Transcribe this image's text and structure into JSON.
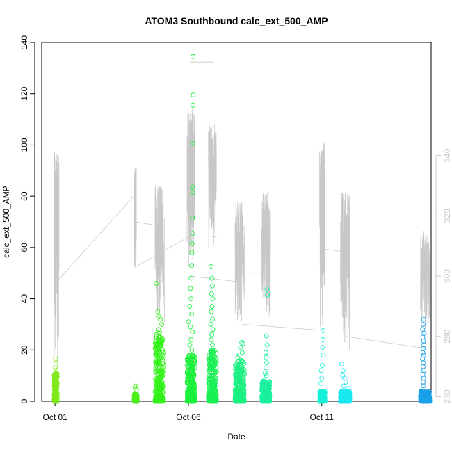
{
  "chart_data": {
    "type": "scatter",
    "title": "ATOM3 Southbound calc_ext_500_AMP",
    "xlabel": "Date",
    "ylabel": "calc_ext_500_AMP",
    "x_unit": "day of October (1 = Oct 01)",
    "xlim": [
      0.5,
      15.1
    ],
    "ylim": [
      0,
      140
    ],
    "y_ticks": [
      0,
      20,
      40,
      60,
      80,
      100,
      120,
      140
    ],
    "x_ticks": [
      {
        "value": 1,
        "label": "Oct 01"
      },
      {
        "value": 6,
        "label": "Oct 06"
      },
      {
        "value": 11,
        "label": "Oct 11"
      }
    ],
    "right_axis": {
      "ylim": [
        258.5,
        377.5
      ],
      "ticks": [
        260,
        280,
        300,
        320,
        340
      ],
      "color": "#c8c8c8"
    },
    "grid": false,
    "legend": "none",
    "series": [
      {
        "kind": "points",
        "marker": "open-circle",
        "clusters": [
          {
            "color": "#7fe81a",
            "x_range": [
              0.97,
              1.08
            ],
            "dense_range": [
              0,
              11
            ],
            "outliers": [
              [
                1.02,
                16.5
              ],
              [
                1.03,
                14.5
              ],
              [
                1.01,
                13
              ],
              [
                1.04,
                12
              ]
            ]
          },
          {
            "color": "#4cf01a",
            "x_range": [
              3.97,
              4.08
            ],
            "dense_range": [
              0,
              3
            ],
            "outliers": [
              [
                4.0,
                5.5
              ],
              [
                4.05,
                4.5
              ],
              [
                4.03,
                6
              ]
            ]
          },
          {
            "color": "#33f31a",
            "x_range": [
              4.75,
              5.05
            ],
            "dense_range": [
              0,
              26
            ],
            "outliers": [
              [
                4.8,
                46
              ],
              [
                4.85,
                35
              ],
              [
                4.9,
                33
              ],
              [
                4.95,
                32
              ],
              [
                5.0,
                30
              ],
              [
                4.88,
                28
              ],
              [
                4.92,
                27
              ]
            ]
          },
          {
            "color": "#1af03a",
            "x_range": [
              5.95,
              6.25
            ],
            "dense_range": [
              0,
              18
            ],
            "outliers": [
              [
                6.17,
                134.5
              ],
              [
                6.18,
                119.5
              ],
              [
                6.17,
                115.5
              ],
              [
                6.16,
                100.5
              ],
              [
                6.15,
                83.5
              ],
              [
                6.16,
                81.5
              ],
              [
                6.15,
                71.5
              ],
              [
                6.16,
                65.5
              ],
              [
                6.14,
                61.5
              ],
              [
                6.13,
                58
              ],
              [
                6.12,
                53
              ],
              [
                6.1,
                48
              ],
              [
                6.08,
                44
              ],
              [
                6.1,
                40
              ],
              [
                6.05,
                37
              ],
              [
                6.12,
                34
              ],
              [
                6.0,
                31
              ],
              [
                6.08,
                29
              ],
              [
                6.15,
                27
              ],
              [
                6.1,
                24
              ],
              [
                6.05,
                22
              ],
              [
                6.13,
                20
              ]
            ]
          },
          {
            "color": "#1af055",
            "x_range": [
              6.75,
              7.05
            ],
            "dense_range": [
              0,
              20
            ],
            "outliers": [
              [
                6.85,
                52.5
              ],
              [
                6.88,
                48
              ],
              [
                6.9,
                45
              ],
              [
                6.87,
                42
              ],
              [
                6.91,
                40
              ],
              [
                6.89,
                37
              ],
              [
                6.86,
                35
              ],
              [
                6.9,
                32
              ],
              [
                6.84,
                30
              ],
              [
                6.92,
                28
              ],
              [
                6.88,
                26
              ],
              [
                6.86,
                24
              ],
              [
                6.9,
                22
              ]
            ]
          },
          {
            "color": "#1af080",
            "x_range": [
              7.75,
              8.1
            ],
            "dense_range": [
              0,
              16
            ],
            "outliers": [
              [
                8.0,
                23
              ],
              [
                8.05,
                22.5
              ],
              [
                7.95,
                21
              ],
              [
                8.02,
                19
              ],
              [
                7.9,
                18
              ],
              [
                7.85,
                17
              ]
            ]
          },
          {
            "color": "#1af0a0",
            "x_range": [
              8.75,
              9.05
            ],
            "dense_range": [
              0,
              8
            ],
            "outliers": [
              [
                8.95,
                43.5
              ],
              [
                8.96,
                41.5
              ],
              [
                8.93,
                25.5
              ],
              [
                8.95,
                22
              ],
              [
                8.9,
                19
              ],
              [
                8.92,
                17
              ],
              [
                8.94,
                15
              ],
              [
                8.91,
                13
              ],
              [
                8.88,
                11
              ],
              [
                8.93,
                10
              ]
            ]
          },
          {
            "color": "#1af0d8",
            "x_range": [
              10.92,
              11.12
            ],
            "dense_range": [
              0,
              4
            ],
            "outliers": [
              [
                11.05,
                27.5
              ],
              [
                11.04,
                24
              ],
              [
                11.03,
                21
              ],
              [
                11.06,
                18
              ],
              [
                11.02,
                14
              ],
              [
                10.98,
                12
              ],
              [
                11.0,
                9
              ],
              [
                10.97,
                7
              ]
            ]
          },
          {
            "color": "#1ae8ee",
            "x_range": [
              11.7,
              12.05
            ],
            "dense_range": [
              0,
              4
            ],
            "outliers": [
              [
                11.75,
                14.5
              ],
              [
                11.8,
                12
              ],
              [
                11.78,
                10
              ],
              [
                12.0,
                5
              ],
              [
                11.85,
                9
              ],
              [
                11.9,
                7.5
              ],
              [
                11.82,
                6
              ]
            ]
          },
          {
            "color": "#1aa0e8",
            "x_range": [
              14.7,
              15.05
            ],
            "dense_range": [
              0,
              4
            ],
            "outliers": [
              [
                14.82,
                32
              ],
              [
                14.8,
                30
              ],
              [
                14.78,
                28
              ],
              [
                14.84,
                26.5
              ],
              [
                14.79,
                25
              ],
              [
                14.81,
                23.5
              ],
              [
                14.83,
                22
              ],
              [
                14.8,
                20.5
              ],
              [
                14.79,
                19
              ],
              [
                14.82,
                18
              ],
              [
                14.78,
                16.5
              ],
              [
                14.81,
                15
              ],
              [
                14.8,
                13.5
              ],
              [
                14.83,
                12
              ],
              [
                14.79,
                10.5
              ],
              [
                14.82,
                9
              ],
              [
                14.8,
                7.5
              ],
              [
                14.81,
                6
              ]
            ]
          }
        ]
      },
      {
        "kind": "line",
        "axis": "right",
        "color": "#c8c8c8",
        "bursts": [
          {
            "x_range": [
              0.95,
              1.15
            ],
            "y_range": [
              268,
              341
            ],
            "seed": 1
          },
          {
            "x_range": [
              3.95,
              4.05
            ],
            "y_range": [
              302,
              336
            ],
            "seed": 2
          },
          {
            "x_range": [
              4.75,
              5.1
            ],
            "y_range": [
              283,
              331
            ],
            "seed": 3
          },
          {
            "x_range": [
              5.95,
              6.25
            ],
            "y_range": [
              302,
              356
            ],
            "seed": 4
          },
          {
            "x_range": [
              6.75,
              7.05
            ],
            "y_range": [
              305,
              351
            ],
            "seed": 5
          },
          {
            "x_range": [
              7.75,
              8.1
            ],
            "y_range": [
              284,
              325
            ],
            "seed": 6
          },
          {
            "x_range": [
              8.75,
              9.05
            ],
            "y_range": [
              286,
              328
            ],
            "seed": 7
          },
          {
            "x_range": [
              10.92,
              11.12
            ],
            "y_range": [
              278,
              345
            ],
            "seed": 8
          },
          {
            "x_range": [
              11.7,
              12.05
            ],
            "y_range": [
              275,
              328
            ],
            "seed": 9
          },
          {
            "x_range": [
              14.7,
              15.05
            ],
            "y_range": [
              282,
              315
            ],
            "seed": 10
          }
        ],
        "connectors": [
          [
            [
              1.05,
              298
            ],
            [
              4.0,
              327
            ]
          ],
          [
            [
              4.0,
              318
            ],
            [
              4.7,
              317
            ]
          ],
          [
            [
              4.0,
              303
            ],
            [
              6.0,
              313
            ]
          ],
          [
            [
              6.05,
              371
            ],
            [
              6.95,
              371
            ]
          ],
          [
            [
              6.05,
              300
            ],
            [
              8.0,
              298
            ]
          ],
          [
            [
              7.05,
              313
            ],
            [
              6.9,
              313
            ]
          ],
          [
            [
              8.0,
              301
            ],
            [
              9.0,
              301
            ]
          ],
          [
            [
              8.05,
              284
            ],
            [
              11.05,
              282
            ]
          ],
          [
            [
              11.05,
              309
            ],
            [
              11.9,
              308
            ]
          ],
          [
            [
              11.9,
              280
            ],
            [
              14.9,
              276
            ]
          ]
        ]
      }
    ]
  }
}
